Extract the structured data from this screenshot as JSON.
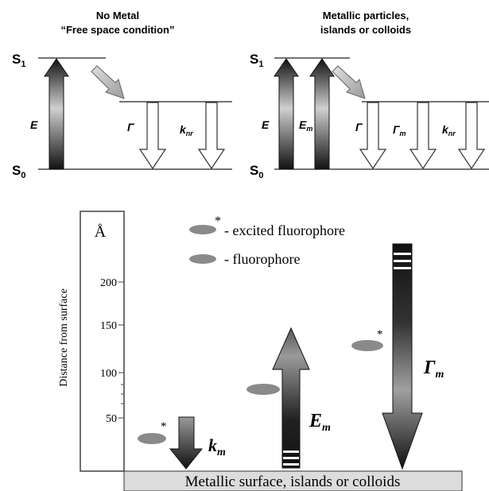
{
  "top_left": {
    "title_line1": "No Metal",
    "title_line2": "“Free space condition”",
    "s1_label": "S",
    "s1_sub": "1",
    "s0_label": "S",
    "s0_sub": "0",
    "excitation_label": "E",
    "gamma_label": "Γ",
    "knr_label": "k",
    "knr_sub": "nr"
  },
  "top_right": {
    "title_line1": "Metallic particles,",
    "title_line2": "islands or colloids",
    "s1_label": "S",
    "s1_sub": "1",
    "s0_label": "S",
    "s0_sub": "0",
    "excitation_label": "E",
    "em_label": "E",
    "em_sub": "m",
    "gamma_label": "Γ",
    "gamma_m_label": "Γ",
    "gamma_m_sub": "m",
    "knr_label": "k",
    "knr_sub": "nr"
  },
  "bottom": {
    "unit_label": "Å",
    "y_axis_label": "Distance from surface",
    "ticks": [
      "200",
      "150",
      "100",
      "50"
    ],
    "legend_excited": "- excited fluorophore",
    "legend_excited_mark": "*",
    "legend_ground": "- fluorophore",
    "km_label": "k",
    "km_sub": "m",
    "em_label": "E",
    "em_sub": "m",
    "gamma_m_label": "Γ",
    "gamma_m_sub": "m",
    "star": "*",
    "surface_label": "Metallic surface, islands or colloids"
  },
  "colors": {
    "line": "#222222",
    "fluorophore": "#8a8a8a",
    "surface": "#dcdcdc",
    "arrow_dark": "#111111",
    "arrow_light": "#d9d9d9"
  }
}
